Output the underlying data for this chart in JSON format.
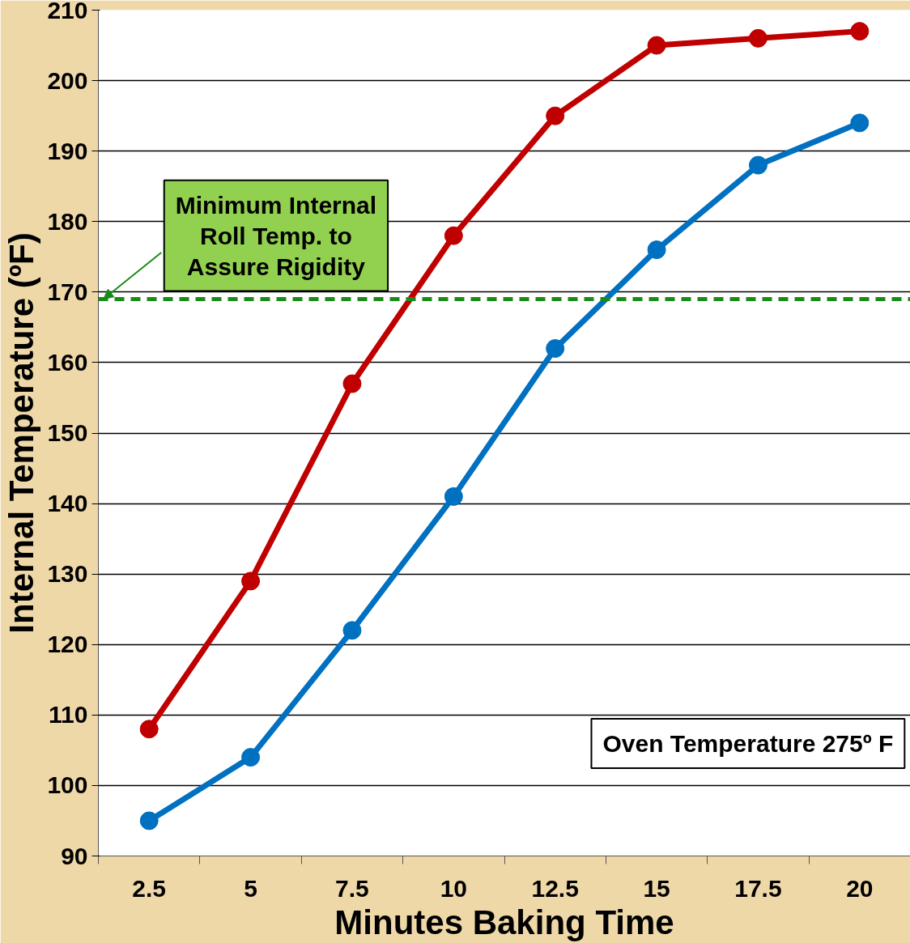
{
  "chart_data": {
    "type": "line",
    "xlabel": "Minutes Baking Time",
    "ylabel": "Internal Temperature (ºF)",
    "categories": [
      "2.5",
      "5",
      "7.5",
      "10",
      "12.5",
      "15",
      "17.5",
      "20"
    ],
    "series": [
      {
        "color": "#c00000",
        "values": [
          108,
          129,
          157,
          178,
          195,
          205,
          206,
          207
        ]
      },
      {
        "color": "#0070c0",
        "values": [
          95,
          104,
          122,
          141,
          162,
          176,
          188,
          194
        ]
      }
    ],
    "ylim": [
      90,
      210
    ],
    "yticks": [
      90,
      100,
      110,
      120,
      130,
      140,
      150,
      160,
      170,
      180,
      190,
      200,
      210
    ],
    "grid": "y",
    "marker": "circle",
    "line_style": "solid",
    "ref_lines": [
      {
        "axis": "y",
        "value": 169,
        "label": "Minimum Internal Roll Temp. to Assure Rigidity",
        "color": "#1a8a1a",
        "line_style": "dashed"
      }
    ],
    "annotations": [
      "Oven Temperature 275º F"
    ]
  }
}
